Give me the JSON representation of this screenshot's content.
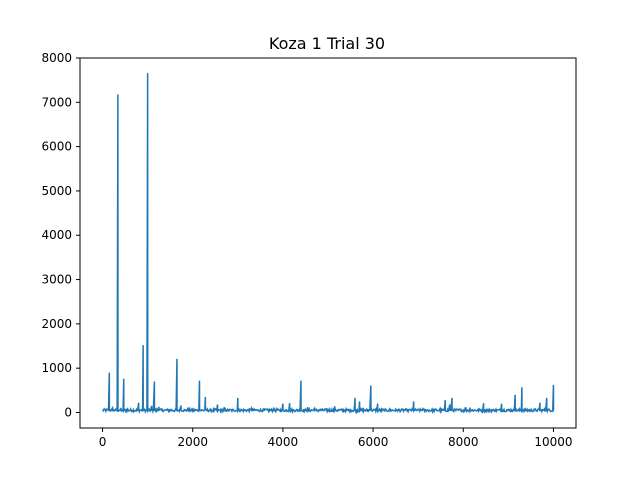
{
  "chart_data": {
    "type": "line",
    "title": "Koza 1 Trial 30",
    "xlabel": "",
    "ylabel": "",
    "xlim": [
      -500,
      10500
    ],
    "ylim": [
      -350,
      8000
    ],
    "xticks": [
      0,
      2000,
      4000,
      6000,
      8000,
      10000
    ],
    "yticks": [
      0,
      1000,
      2000,
      3000,
      4000,
      5000,
      6000,
      7000,
      8000
    ],
    "xtick_labels": [
      "0",
      "2000",
      "4000",
      "6000",
      "8000",
      "10000"
    ],
    "ytick_labels": [
      "0",
      "1000",
      "2000",
      "3000",
      "4000",
      "5000",
      "6000",
      "7000",
      "8000"
    ],
    "grid": false,
    "legend": "none",
    "colors": {
      "series": "#1f77b4",
      "axes": "#000000",
      "background": "#ffffff"
    },
    "series": [
      {
        "name": "",
        "baseline": 20,
        "noise": 60,
        "n_points": 10000,
        "spikes": [
          [
            150,
            900
          ],
          [
            220,
            100
          ],
          [
            340,
            7180
          ],
          [
            470,
            760
          ],
          [
            560,
            90
          ],
          [
            800,
            220
          ],
          [
            900,
            1520
          ],
          [
            1000,
            7660
          ],
          [
            1090,
            150
          ],
          [
            1150,
            700
          ],
          [
            1250,
            130
          ],
          [
            1650,
            1210
          ],
          [
            1740,
            160
          ],
          [
            1900,
            110
          ],
          [
            2150,
            720
          ],
          [
            2280,
            350
          ],
          [
            2550,
            180
          ],
          [
            2700,
            120
          ],
          [
            3000,
            330
          ],
          [
            3300,
            90
          ],
          [
            3800,
            110
          ],
          [
            4000,
            200
          ],
          [
            4150,
            210
          ],
          [
            4400,
            720
          ],
          [
            4550,
            120
          ],
          [
            4700,
            90
          ],
          [
            5000,
            90
          ],
          [
            5150,
            140
          ],
          [
            5600,
            330
          ],
          [
            5700,
            250
          ],
          [
            5950,
            610
          ],
          [
            6100,
            200
          ],
          [
            6900,
            250
          ],
          [
            7100,
            80
          ],
          [
            7600,
            280
          ],
          [
            7700,
            180
          ],
          [
            7750,
            330
          ],
          [
            8050,
            120
          ],
          [
            8150,
            110
          ],
          [
            8450,
            210
          ],
          [
            8850,
            200
          ],
          [
            9150,
            400
          ],
          [
            9300,
            570
          ],
          [
            9700,
            220
          ],
          [
            9850,
            330
          ],
          [
            10000,
            620
          ]
        ]
      }
    ]
  }
}
